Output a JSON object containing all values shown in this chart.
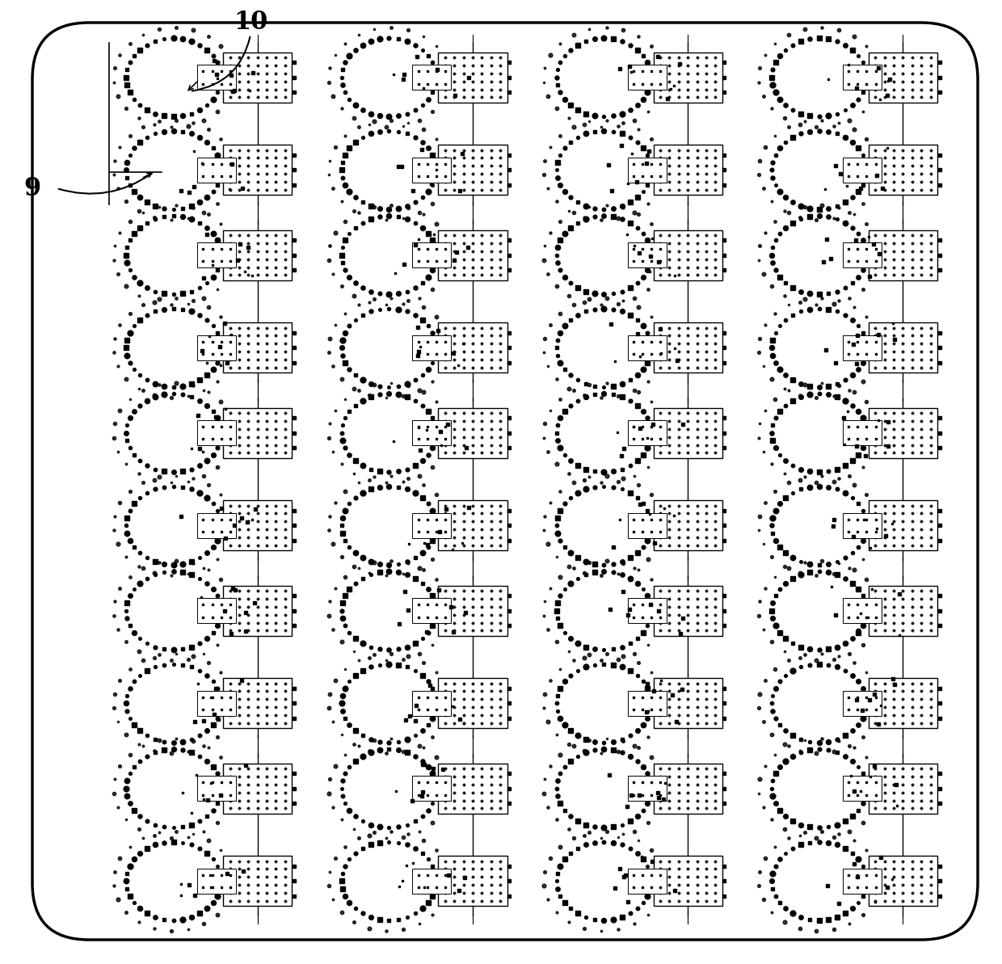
{
  "fig_width": 12.4,
  "fig_height": 11.93,
  "bg_color": "#ffffff",
  "border_color": "#000000",
  "border_lw": 2.5,
  "grid_cols": 4,
  "grid_rows": 5,
  "label_10": "10",
  "label_9": "9"
}
